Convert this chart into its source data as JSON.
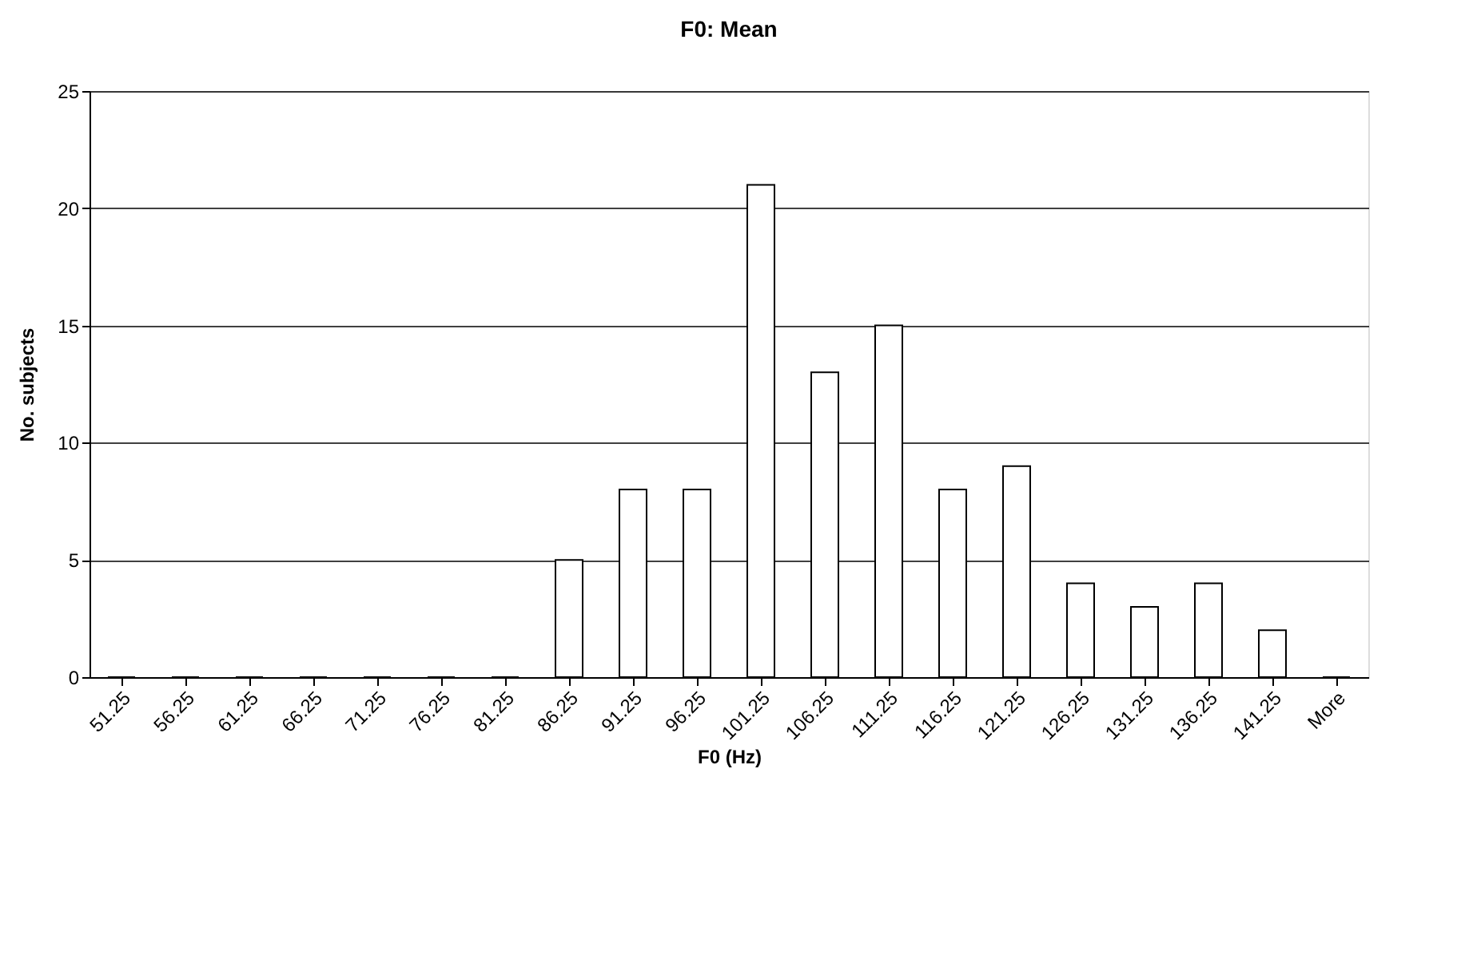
{
  "chart_data": {
    "type": "bar",
    "title": "F0: Mean",
    "xlabel": "F0 (Hz)",
    "ylabel": "No. subjects",
    "categories": [
      "51.25",
      "56.25",
      "61.25",
      "66.25",
      "71.25",
      "76.25",
      "81.25",
      "86.25",
      "91.25",
      "96.25",
      "101.25",
      "106.25",
      "111.25",
      "116.25",
      "121.25",
      "126.25",
      "131.25",
      "136.25",
      "141.25",
      "More"
    ],
    "values": [
      0,
      0,
      0,
      0,
      0,
      0,
      0,
      5,
      8,
      8,
      21,
      13,
      15,
      8,
      9,
      4,
      3,
      4,
      2,
      0
    ],
    "color": "#ffffff",
    "ylim": [
      0,
      25
    ],
    "yticks": [
      0,
      5,
      10,
      15,
      20,
      25
    ],
    "grid": "y"
  }
}
